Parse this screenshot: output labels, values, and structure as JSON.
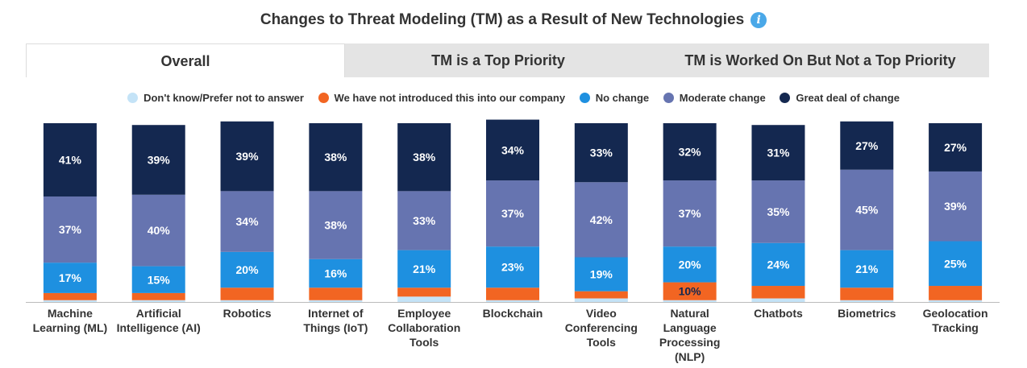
{
  "header": {
    "title": "Changes to Threat Modeling (TM) as a Result of New Technologies",
    "info_icon": "info-icon"
  },
  "tabs": [
    {
      "label": "Overall",
      "active": true
    },
    {
      "label": "TM is a Top Priority",
      "active": false
    },
    {
      "label": "TM is Worked On But Not a Top Priority",
      "active": false
    }
  ],
  "chart_data": {
    "type": "bar",
    "stacked": true,
    "legend_position": "top",
    "categories": [
      [
        "Machine",
        "Learning (ML)"
      ],
      [
        "Artificial",
        "Intelligence (AI)"
      ],
      [
        "Robotics"
      ],
      [
        "Internet of",
        "Things (IoT)"
      ],
      [
        "Employee",
        "Collaboration",
        "Tools"
      ],
      [
        "Blockchain"
      ],
      [
        "Video",
        "Conferencing",
        "Tools"
      ],
      [
        "Natural",
        "Language",
        "Processing",
        "(NLP)"
      ],
      [
        "Chatbots"
      ],
      [
        "Biometrics"
      ],
      [
        "Geolocation",
        "Tracking"
      ]
    ],
    "series": [
      {
        "name": "Don't know/Prefer not to answer",
        "color": "#c4e3f7",
        "values": [
          1,
          1,
          1,
          1,
          3,
          1,
          2,
          1,
          2,
          1,
          1
        ]
      },
      {
        "name": "We have not introduced this into our company",
        "color": "#f26522",
        "values": [
          4,
          4,
          7,
          7,
          5,
          7,
          4,
          10,
          7,
          7,
          8
        ]
      },
      {
        "name": "No change",
        "color": "#1e90e0",
        "values": [
          17,
          15,
          20,
          16,
          21,
          23,
          19,
          20,
          24,
          21,
          25
        ]
      },
      {
        "name": "Moderate change",
        "color": "#6674b0",
        "values": [
          37,
          40,
          34,
          38,
          33,
          37,
          42,
          37,
          35,
          45,
          39
        ]
      },
      {
        "name": "Great deal of change",
        "color": "#142850",
        "values": [
          41,
          39,
          39,
          38,
          38,
          34,
          33,
          32,
          31,
          27,
          27
        ]
      }
    ],
    "data_labels": {
      "No change": [
        "17%",
        "15%",
        "20%",
        "16%",
        "21%",
        "23%",
        "19%",
        "20%",
        "24%",
        "21%",
        "25%"
      ],
      "Moderate change": [
        "37%",
        "40%",
        "34%",
        "38%",
        "33%",
        "37%",
        "42%",
        "37%",
        "35%",
        "45%",
        "39%"
      ],
      "Great deal of change": [
        "41%",
        "39%",
        "39%",
        "38%",
        "38%",
        "34%",
        "33%",
        "32%",
        "31%",
        "27%",
        "27%"
      ],
      "We have not introduced this into our company": [
        "",
        "",
        "",
        "",
        "",
        "",
        "",
        "10%",
        "",
        "",
        ""
      ]
    },
    "ylim": [
      0,
      100
    ],
    "grid": false
  }
}
